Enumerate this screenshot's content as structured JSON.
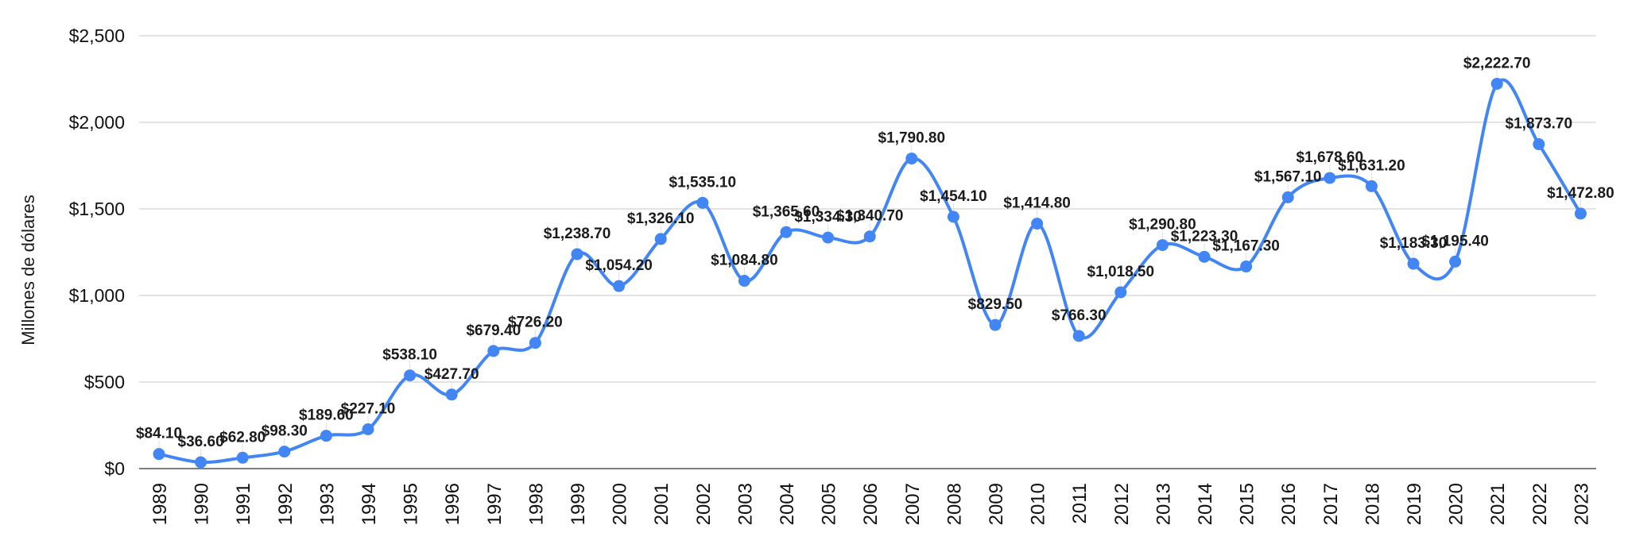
{
  "chart": {
    "ylabel": "Millones de dólares"
  },
  "chart_data": {
    "type": "line",
    "smooth": true,
    "title": "",
    "xlabel": "",
    "ylabel": "Millones de dólares",
    "legend_position": "none",
    "grid": "horizontal",
    "x_tick_rotation": -90,
    "ylim": [
      0,
      2500
    ],
    "y_ticks": [
      {
        "label": "$0",
        "value": 0
      },
      {
        "label": "$500",
        "value": 500
      },
      {
        "label": "$1,000",
        "value": 1000
      },
      {
        "label": "$1,500",
        "value": 1500
      },
      {
        "label": "$2,000",
        "value": 2000
      },
      {
        "label": "$2,500",
        "value": 2500
      }
    ],
    "categories": [
      "1989",
      "1990",
      "1991",
      "1992",
      "1993",
      "1994",
      "1995",
      "1996",
      "1997",
      "1998",
      "1999",
      "2000",
      "2001",
      "2002",
      "2003",
      "2004",
      "2005",
      "2006",
      "2007",
      "2008",
      "2009",
      "2010",
      "2011",
      "2012",
      "2013",
      "2014",
      "2015",
      "2016",
      "2017",
      "2018",
      "2019",
      "2020",
      "2021",
      "2022",
      "2023"
    ],
    "series": [
      {
        "name": "Millones de dólares",
        "values": [
          84.1,
          36.6,
          62.8,
          98.3,
          189.6,
          227.1,
          538.1,
          427.7,
          679.4,
          726.2,
          1238.7,
          1054.2,
          1326.1,
          1535.1,
          1084.8,
          1365.6,
          1334.3,
          1340.7,
          1790.8,
          1454.1,
          829.5,
          1414.8,
          766.3,
          1018.5,
          1290.8,
          1223.3,
          1167.3,
          1567.1,
          1678.6,
          1631.2,
          1183.3,
          1195.4,
          2222.7,
          1873.7,
          1472.8
        ],
        "point_labels": [
          "$84.10",
          "$36.60",
          "$62.80",
          "$98.30",
          "$189.60",
          "$227.10",
          "$538.10",
          "$427.70",
          "$679.40",
          "$726.20",
          "$1,238.70",
          "$1,054.20",
          "$1,326.10",
          "$1,535.10",
          "$1,084.80",
          "$1,365.60",
          "$1,334.30",
          "$1,340.70",
          "$1,790.80",
          "$1,454.10",
          "$829.50",
          "$1,414.80",
          "$766.30",
          "$1,018.50",
          "$1,290.80",
          "$1,223.30",
          "$1,167.30",
          "$1,567.10",
          "$1,678.60",
          "$1,631.20",
          "$1,183.30",
          "$1,195.40",
          "$2,222.70",
          "$1,873.70",
          "$1,472.80"
        ]
      }
    ],
    "colors": {
      "line": "#4285F4",
      "point": "#4285F4",
      "gridline": "#dcdcdc",
      "axis_line": "#7d7d7d",
      "leader_line": "#e0e0e0",
      "tick_text": "#111111",
      "data_label_text": "#1b1b1b",
      "background": "#ffffff"
    }
  }
}
